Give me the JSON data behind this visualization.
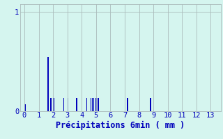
{
  "title": "",
  "xlabel": "Précipitations 6min ( mm )",
  "ylabel": "",
  "xlim": [
    -0.3,
    13.7
  ],
  "ylim": [
    0,
    1.08
  ],
  "yticks": [
    0,
    1
  ],
  "xticks": [
    0,
    1,
    2,
    3,
    4,
    5,
    6,
    7,
    8,
    9,
    10,
    11,
    12,
    13
  ],
  "background_color": "#d5f5ef",
  "bar_color": "#0000bb",
  "grid_color": "#aabbbb",
  "bar_positions": [
    0.05,
    1.65,
    1.85,
    2.05,
    2.75,
    3.05,
    3.65,
    4.35,
    4.65,
    4.75,
    4.85,
    5.0,
    5.15,
    7.2,
    8.8
  ],
  "bar_heights": [
    0.07,
    0.55,
    0.13,
    0.13,
    0.13,
    0.13,
    0.13,
    0.13,
    0.13,
    0.13,
    0.13,
    0.13,
    0.13,
    0.13,
    0.13
  ],
  "bar_width": 0.07,
  "label_fontsize": 8.5,
  "tick_fontsize": 7.5
}
